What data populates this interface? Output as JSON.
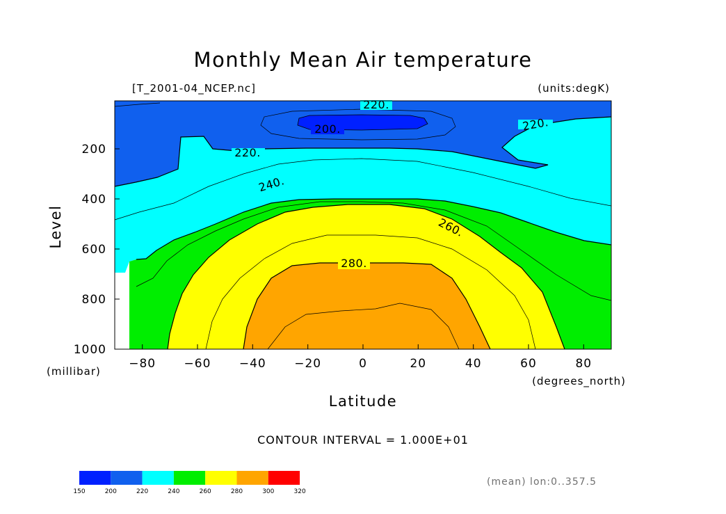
{
  "chart_data": {
    "type": "contour",
    "title": "Monthly Mean Air temperature",
    "file_label": "[T_2001-04_NCEP.nc]",
    "units_label": "(units:degK)",
    "xlabel": "Latitude",
    "xunits": "(degrees_north)",
    "ylabel": "Level",
    "yunits": "(millibar)",
    "xlim": [
      -90,
      90
    ],
    "ylim": [
      1000,
      10
    ],
    "x_ticks": [
      "−80",
      "−60",
      "−40",
      "−20",
      "0",
      "20",
      "40",
      "60",
      "80"
    ],
    "y_ticks": [
      "200",
      "400",
      "600",
      "800",
      "1000"
    ],
    "contour_interval_text": "CONTOUR INTERVAL = 1.000E+01",
    "mean_note": "(mean) lon:0..357.5",
    "contour_labels": [
      "220.",
      "200.",
      "220.",
      "220.",
      "240.",
      "260.",
      "280."
    ],
    "colorbar": {
      "ticks": [
        "150",
        "200",
        "220",
        "240",
        "260",
        "280",
        "300",
        "320"
      ],
      "colors": [
        "#0020ff",
        "#1060ee",
        "#00ffff",
        "#00ee00",
        "#ffff00",
        "#ffa500",
        "#ff0000"
      ]
    },
    "bands": [
      {
        "level": "<200",
        "color": "#0020ff"
      },
      {
        "level": "200-220",
        "color": "#1060ee"
      },
      {
        "level": "220-240",
        "color": "#00ffff"
      },
      {
        "level": "240-260",
        "color": "#00ee00"
      },
      {
        "level": "260-280",
        "color": "#ffff00"
      },
      {
        "level": "280-300",
        "color": "#ffa500"
      }
    ]
  }
}
